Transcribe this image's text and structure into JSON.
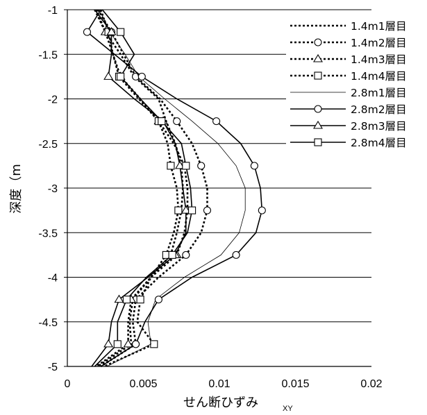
{
  "chart_data": {
    "type": "line",
    "title": "",
    "xlabel": "せん断ひずみ",
    "xlabel_subscript": "XY",
    "ylabel": "深度（m",
    "xlim": [
      0,
      0.02
    ],
    "ylim": [
      -5,
      -1
    ],
    "x_ticks": [
      "0",
      "0.005",
      "0.01",
      "0.015",
      "0.02"
    ],
    "y_ticks": [
      "-1",
      "-1.5",
      "-2",
      "-2.5",
      "-3",
      "-3.5",
      "-4",
      "-4.5",
      "-5"
    ],
    "grid": "horizontal",
    "legend_position": "top-right",
    "marker_depths": [
      -1.25,
      -1.75,
      -2.25,
      -2.75,
      -3.25,
      -3.75,
      -4.25,
      -4.75
    ],
    "series": [
      {
        "name": "1.4m1層目",
        "line": "dotted",
        "marker": "none",
        "points": [
          [
            0.0018,
            -1.0
          ],
          [
            0.0025,
            -1.25
          ],
          [
            0.0035,
            -1.5
          ],
          [
            0.0044,
            -1.75
          ],
          [
            0.006,
            -2.0
          ],
          [
            0.0065,
            -2.25
          ],
          [
            0.0071,
            -2.5
          ],
          [
            0.0075,
            -2.75
          ],
          [
            0.0076,
            -3.0
          ],
          [
            0.0075,
            -3.25
          ],
          [
            0.0072,
            -3.5
          ],
          [
            0.0068,
            -3.75
          ],
          [
            0.0055,
            -4.0
          ],
          [
            0.0043,
            -4.25
          ],
          [
            0.0041,
            -4.5
          ],
          [
            0.0042,
            -4.75
          ],
          [
            0.002,
            -5.0
          ]
        ]
      },
      {
        "name": "1.4m2層目",
        "line": "dotted",
        "marker": "circle",
        "points": [
          [
            0.002,
            -1.0
          ],
          [
            0.0029,
            -1.25
          ],
          [
            0.0037,
            -1.5
          ],
          [
            0.0045,
            -1.75
          ],
          [
            0.0061,
            -2.0
          ],
          [
            0.0072,
            -2.25
          ],
          [
            0.0082,
            -2.5
          ],
          [
            0.0088,
            -2.75
          ],
          [
            0.0092,
            -3.0
          ],
          [
            0.0092,
            -3.25
          ],
          [
            0.0088,
            -3.5
          ],
          [
            0.0078,
            -3.75
          ],
          [
            0.006,
            -4.0
          ],
          [
            0.0045,
            -4.25
          ],
          [
            0.0043,
            -4.5
          ],
          [
            0.0045,
            -4.75
          ],
          [
            0.0022,
            -5.0
          ]
        ]
      },
      {
        "name": "1.4m3層目",
        "line": "dotted",
        "marker": "triangle",
        "points": [
          [
            0.0019,
            -1.0
          ],
          [
            0.0025,
            -1.25
          ],
          [
            0.003,
            -1.5
          ],
          [
            0.0035,
            -1.75
          ],
          [
            0.0048,
            -2.0
          ],
          [
            0.006,
            -2.25
          ],
          [
            0.007,
            -2.5
          ],
          [
            0.0077,
            -2.75
          ],
          [
            0.0079,
            -3.0
          ],
          [
            0.0079,
            -3.25
          ],
          [
            0.0077,
            -3.5
          ],
          [
            0.0072,
            -3.75
          ],
          [
            0.0055,
            -4.0
          ],
          [
            0.0042,
            -4.25
          ],
          [
            0.004,
            -4.5
          ],
          [
            0.004,
            -4.75
          ],
          [
            0.0019,
            -5.0
          ]
        ]
      },
      {
        "name": "1.4m4層目",
        "line": "dotted",
        "marker": "square",
        "points": [
          [
            0.0022,
            -1.0
          ],
          [
            0.0027,
            -1.25
          ],
          [
            0.003,
            -1.5
          ],
          [
            0.0034,
            -1.75
          ],
          [
            0.0047,
            -2.0
          ],
          [
            0.006,
            -2.25
          ],
          [
            0.0066,
            -2.5
          ],
          [
            0.0068,
            -2.75
          ],
          [
            0.0072,
            -3.0
          ],
          [
            0.0073,
            -3.25
          ],
          [
            0.007,
            -3.5
          ],
          [
            0.0065,
            -3.75
          ],
          [
            0.0055,
            -4.0
          ],
          [
            0.0048,
            -4.25
          ],
          [
            0.0046,
            -4.5
          ],
          [
            0.0057,
            -4.75
          ],
          [
            0.0024,
            -5.0
          ]
        ]
      },
      {
        "name": "2.8m1層目",
        "line": "solid-thin",
        "marker": "none",
        "points": [
          [
            0.0021,
            -1.0
          ],
          [
            0.0028,
            -1.25
          ],
          [
            0.0038,
            -1.5
          ],
          [
            0.0047,
            -1.75
          ],
          [
            0.0064,
            -2.0
          ],
          [
            0.0082,
            -2.25
          ],
          [
            0.0099,
            -2.5
          ],
          [
            0.0111,
            -2.75
          ],
          [
            0.0117,
            -3.0
          ],
          [
            0.0117,
            -3.25
          ],
          [
            0.0113,
            -3.5
          ],
          [
            0.0101,
            -3.75
          ],
          [
            0.0077,
            -4.0
          ],
          [
            0.0058,
            -4.25
          ],
          [
            0.0053,
            -4.5
          ],
          [
            0.0055,
            -4.75
          ],
          [
            0.0026,
            -5.0
          ]
        ]
      },
      {
        "name": "2.8m2層目",
        "line": "solid",
        "marker": "circle",
        "points": [
          [
            0.0022,
            -1.0
          ],
          [
            0.0013,
            -1.25
          ],
          [
            0.0031,
            -1.5
          ],
          [
            0.0049,
            -1.75
          ],
          [
            0.0072,
            -2.0
          ],
          [
            0.0098,
            -2.25
          ],
          [
            0.0114,
            -2.5
          ],
          [
            0.0123,
            -2.75
          ],
          [
            0.0127,
            -3.0
          ],
          [
            0.0128,
            -3.25
          ],
          [
            0.0124,
            -3.5
          ],
          [
            0.0111,
            -3.75
          ],
          [
            0.0082,
            -4.0
          ],
          [
            0.006,
            -4.25
          ],
          [
            0.0051,
            -4.5
          ],
          [
            0.0045,
            -4.75
          ],
          [
            0.0022,
            -5.0
          ]
        ]
      },
      {
        "name": "2.8m3層目",
        "line": "solid",
        "marker": "triangle",
        "points": [
          [
            0.0018,
            -1.0
          ],
          [
            0.0029,
            -1.25
          ],
          [
            0.0029,
            -1.5
          ],
          [
            0.0027,
            -1.75
          ],
          [
            0.0044,
            -2.0
          ],
          [
            0.0063,
            -2.25
          ],
          [
            0.0071,
            -2.5
          ],
          [
            0.0074,
            -2.75
          ],
          [
            0.0076,
            -3.0
          ],
          [
            0.0078,
            -3.25
          ],
          [
            0.0078,
            -3.5
          ],
          [
            0.0071,
            -3.75
          ],
          [
            0.0053,
            -4.0
          ],
          [
            0.0034,
            -4.25
          ],
          [
            0.0029,
            -4.5
          ],
          [
            0.0027,
            -4.75
          ],
          [
            0.0016,
            -5.0
          ]
        ]
      },
      {
        "name": "2.8m4層目",
        "line": "solid",
        "marker": "square",
        "points": [
          [
            0.0023,
            -1.0
          ],
          [
            0.0035,
            -1.25
          ],
          [
            0.0044,
            -1.5
          ],
          [
            0.0035,
            -1.75
          ],
          [
            0.0048,
            -2.0
          ],
          [
            0.0062,
            -2.25
          ],
          [
            0.0075,
            -2.5
          ],
          [
            0.0078,
            -2.75
          ],
          [
            0.0081,
            -3.0
          ],
          [
            0.0082,
            -3.25
          ],
          [
            0.0079,
            -3.5
          ],
          [
            0.0069,
            -3.75
          ],
          [
            0.0052,
            -4.0
          ],
          [
            0.0039,
            -4.25
          ],
          [
            0.0033,
            -4.5
          ],
          [
            0.0033,
            -4.75
          ],
          [
            0.0018,
            -5.0
          ]
        ]
      }
    ]
  }
}
